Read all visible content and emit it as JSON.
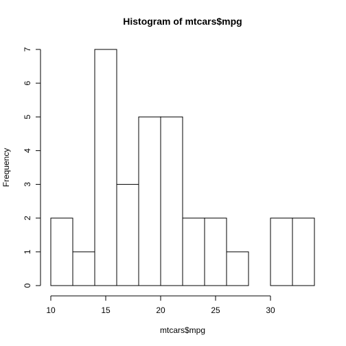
{
  "chart_data": {
    "type": "bar",
    "title": "Histogram of mtcars$mpg",
    "xlabel": "mtcars$mpg",
    "ylabel": "Frequency",
    "bins": [
      {
        "start": 10,
        "end": 12,
        "count": 2
      },
      {
        "start": 12,
        "end": 14,
        "count": 1
      },
      {
        "start": 14,
        "end": 16,
        "count": 7
      },
      {
        "start": 16,
        "end": 18,
        "count": 3
      },
      {
        "start": 18,
        "end": 20,
        "count": 5
      },
      {
        "start": 20,
        "end": 22,
        "count": 5
      },
      {
        "start": 22,
        "end": 24,
        "count": 2
      },
      {
        "start": 24,
        "end": 26,
        "count": 2
      },
      {
        "start": 26,
        "end": 28,
        "count": 1
      },
      {
        "start": 28,
        "end": 30,
        "count": 0
      },
      {
        "start": 30,
        "end": 32,
        "count": 2
      },
      {
        "start": 32,
        "end": 34,
        "count": 2
      }
    ],
    "xlim": [
      10,
      34
    ],
    "ylim": [
      0,
      7
    ],
    "x_ticks": [
      10,
      15,
      20,
      25,
      30
    ],
    "y_ticks": [
      0,
      1,
      2,
      3,
      4,
      5,
      6,
      7
    ],
    "grid": false,
    "bar_fill": "#ffffff",
    "bar_stroke": "#000000"
  }
}
